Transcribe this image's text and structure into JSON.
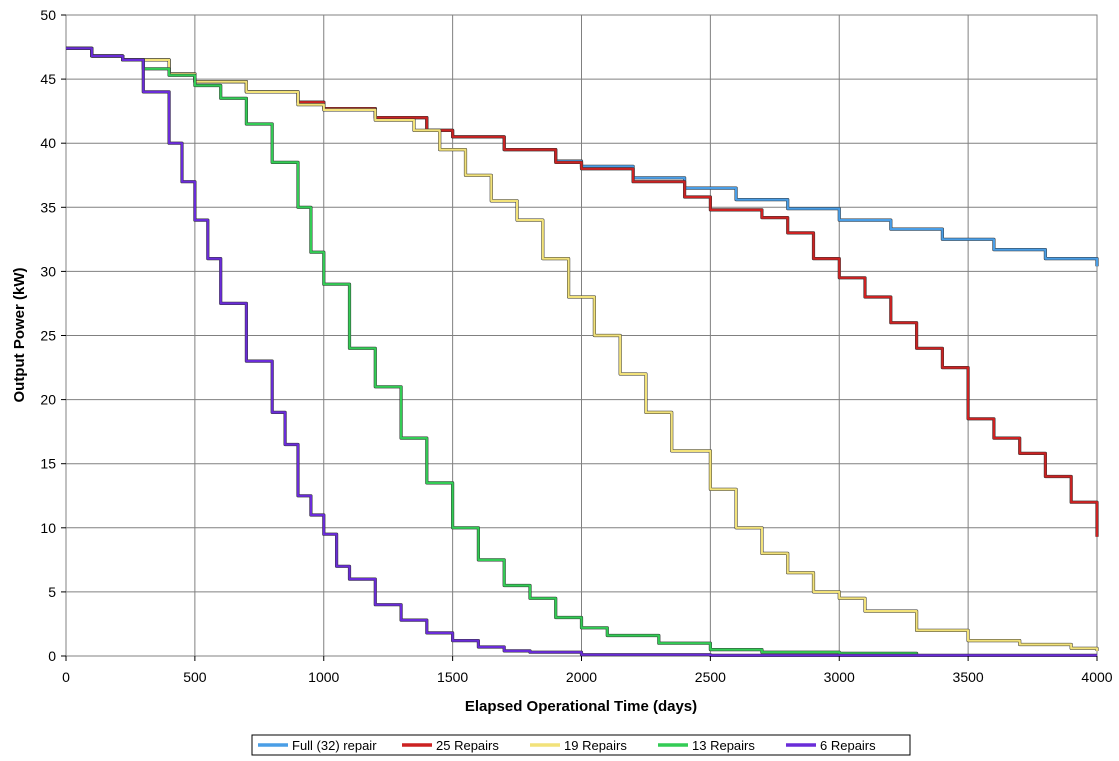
{
  "chart_data": {
    "type": "line",
    "title": "",
    "xlabel": "Elapsed Operational Time (days)",
    "ylabel": "Output Power (kW)",
    "xlim": [
      0,
      4000
    ],
    "ylim": [
      0,
      50
    ],
    "xticks": [
      0,
      500,
      1000,
      1500,
      2000,
      2500,
      3000,
      3500,
      4000
    ],
    "yticks": [
      0,
      5,
      10,
      15,
      20,
      25,
      30,
      35,
      40,
      45,
      50
    ],
    "xtick_labels": [
      "0",
      "500",
      "1000",
      "1500",
      "2000",
      "2500",
      "3000",
      "3500",
      "4000"
    ],
    "ytick_labels": [
      "0",
      "5",
      "10",
      "15",
      "20",
      "25",
      "30",
      "35",
      "40",
      "45",
      "50"
    ],
    "grid": true,
    "legend_position": "bottom-center",
    "series": [
      {
        "name": "Full (32) repair",
        "color": "#4a9ee6",
        "points": [
          [
            0,
            47.4
          ],
          [
            100,
            46.8
          ],
          [
            220,
            46.5
          ],
          [
            400,
            45.4
          ],
          [
            500,
            44.8
          ],
          [
            700,
            44.0
          ],
          [
            900,
            43.2
          ],
          [
            1000,
            42.7
          ],
          [
            1200,
            42.0
          ],
          [
            1400,
            41.0
          ],
          [
            1500,
            40.5
          ],
          [
            1700,
            39.5
          ],
          [
            1900,
            38.6
          ],
          [
            2000,
            38.2
          ],
          [
            2200,
            37.3
          ],
          [
            2400,
            36.5
          ],
          [
            2600,
            35.6
          ],
          [
            2800,
            34.9
          ],
          [
            3000,
            34.0
          ],
          [
            3200,
            33.3
          ],
          [
            3400,
            32.5
          ],
          [
            3600,
            31.7
          ],
          [
            3800,
            31.0
          ],
          [
            4000,
            30.4
          ]
        ]
      },
      {
        "name": "25 Repairs",
        "color": "#cc2222",
        "points": [
          [
            0,
            47.4
          ],
          [
            100,
            46.8
          ],
          [
            220,
            46.5
          ],
          [
            400,
            45.4
          ],
          [
            500,
            44.8
          ],
          [
            700,
            44.0
          ],
          [
            900,
            43.2
          ],
          [
            1000,
            42.7
          ],
          [
            1200,
            42.0
          ],
          [
            1400,
            41.0
          ],
          [
            1500,
            40.5
          ],
          [
            1700,
            39.5
          ],
          [
            1900,
            38.5
          ],
          [
            2000,
            38.0
          ],
          [
            2200,
            37.0
          ],
          [
            2400,
            35.8
          ],
          [
            2500,
            34.8
          ],
          [
            2700,
            34.2
          ],
          [
            2800,
            33.0
          ],
          [
            2900,
            31.0
          ],
          [
            3000,
            29.5
          ],
          [
            3100,
            28.0
          ],
          [
            3200,
            26.0
          ],
          [
            3300,
            24.0
          ],
          [
            3400,
            22.5
          ],
          [
            3500,
            18.5
          ],
          [
            3600,
            17.0
          ],
          [
            3700,
            15.8
          ],
          [
            3800,
            14.0
          ],
          [
            3900,
            12.0
          ],
          [
            4000,
            9.3
          ]
        ]
      },
      {
        "name": "19 Repairs",
        "color": "#f2e27a",
        "points": [
          [
            0,
            47.4
          ],
          [
            100,
            46.8
          ],
          [
            220,
            46.5
          ],
          [
            400,
            45.4
          ],
          [
            500,
            44.8
          ],
          [
            700,
            44.0
          ],
          [
            900,
            43.0
          ],
          [
            1000,
            42.6
          ],
          [
            1200,
            41.8
          ],
          [
            1350,
            41.0
          ],
          [
            1450,
            39.5
          ],
          [
            1550,
            37.5
          ],
          [
            1650,
            35.5
          ],
          [
            1750,
            34.0
          ],
          [
            1850,
            31.0
          ],
          [
            1950,
            28.0
          ],
          [
            2050,
            25.0
          ],
          [
            2150,
            22.0
          ],
          [
            2250,
            19.0
          ],
          [
            2350,
            16.0
          ],
          [
            2500,
            13.0
          ],
          [
            2600,
            10.0
          ],
          [
            2700,
            8.0
          ],
          [
            2800,
            6.5
          ],
          [
            2900,
            5.0
          ],
          [
            3000,
            4.5
          ],
          [
            3100,
            3.5
          ],
          [
            3300,
            2.0
          ],
          [
            3500,
            1.2
          ],
          [
            3700,
            0.9
          ],
          [
            3900,
            0.6
          ],
          [
            4000,
            0.4
          ]
        ]
      },
      {
        "name": "13 Repairs",
        "color": "#33cc55",
        "points": [
          [
            0,
            47.4
          ],
          [
            100,
            46.8
          ],
          [
            220,
            46.5
          ],
          [
            300,
            45.8
          ],
          [
            400,
            45.3
          ],
          [
            500,
            44.5
          ],
          [
            600,
            43.5
          ],
          [
            700,
            41.5
          ],
          [
            800,
            38.5
          ],
          [
            900,
            35.0
          ],
          [
            950,
            31.5
          ],
          [
            1000,
            29.0
          ],
          [
            1100,
            24.0
          ],
          [
            1200,
            21.0
          ],
          [
            1300,
            17.0
          ],
          [
            1400,
            13.5
          ],
          [
            1500,
            10.0
          ],
          [
            1600,
            7.5
          ],
          [
            1700,
            5.5
          ],
          [
            1800,
            4.5
          ],
          [
            1900,
            3.0
          ],
          [
            2000,
            2.2
          ],
          [
            2100,
            1.6
          ],
          [
            2300,
            1.0
          ],
          [
            2500,
            0.5
          ],
          [
            2700,
            0.3
          ],
          [
            3000,
            0.2
          ],
          [
            3300,
            0.1
          ]
        ]
      },
      {
        "name": "6 Repairs",
        "color": "#6a2cd8",
        "points": [
          [
            0,
            47.4
          ],
          [
            100,
            46.8
          ],
          [
            220,
            46.5
          ],
          [
            300,
            44.0
          ],
          [
            400,
            40.0
          ],
          [
            450,
            37.0
          ],
          [
            500,
            34.0
          ],
          [
            550,
            31.0
          ],
          [
            600,
            27.5
          ],
          [
            700,
            23.0
          ],
          [
            800,
            19.0
          ],
          [
            850,
            16.5
          ],
          [
            900,
            12.5
          ],
          [
            950,
            11.0
          ],
          [
            1000,
            9.5
          ],
          [
            1050,
            7.0
          ],
          [
            1100,
            6.0
          ],
          [
            1200,
            4.0
          ],
          [
            1300,
            2.8
          ],
          [
            1400,
            1.8
          ],
          [
            1500,
            1.2
          ],
          [
            1600,
            0.7
          ],
          [
            1700,
            0.4
          ],
          [
            1800,
            0.3
          ],
          [
            2000,
            0.1
          ],
          [
            2500,
            0.05
          ],
          [
            4000,
            0.05
          ]
        ]
      }
    ]
  }
}
